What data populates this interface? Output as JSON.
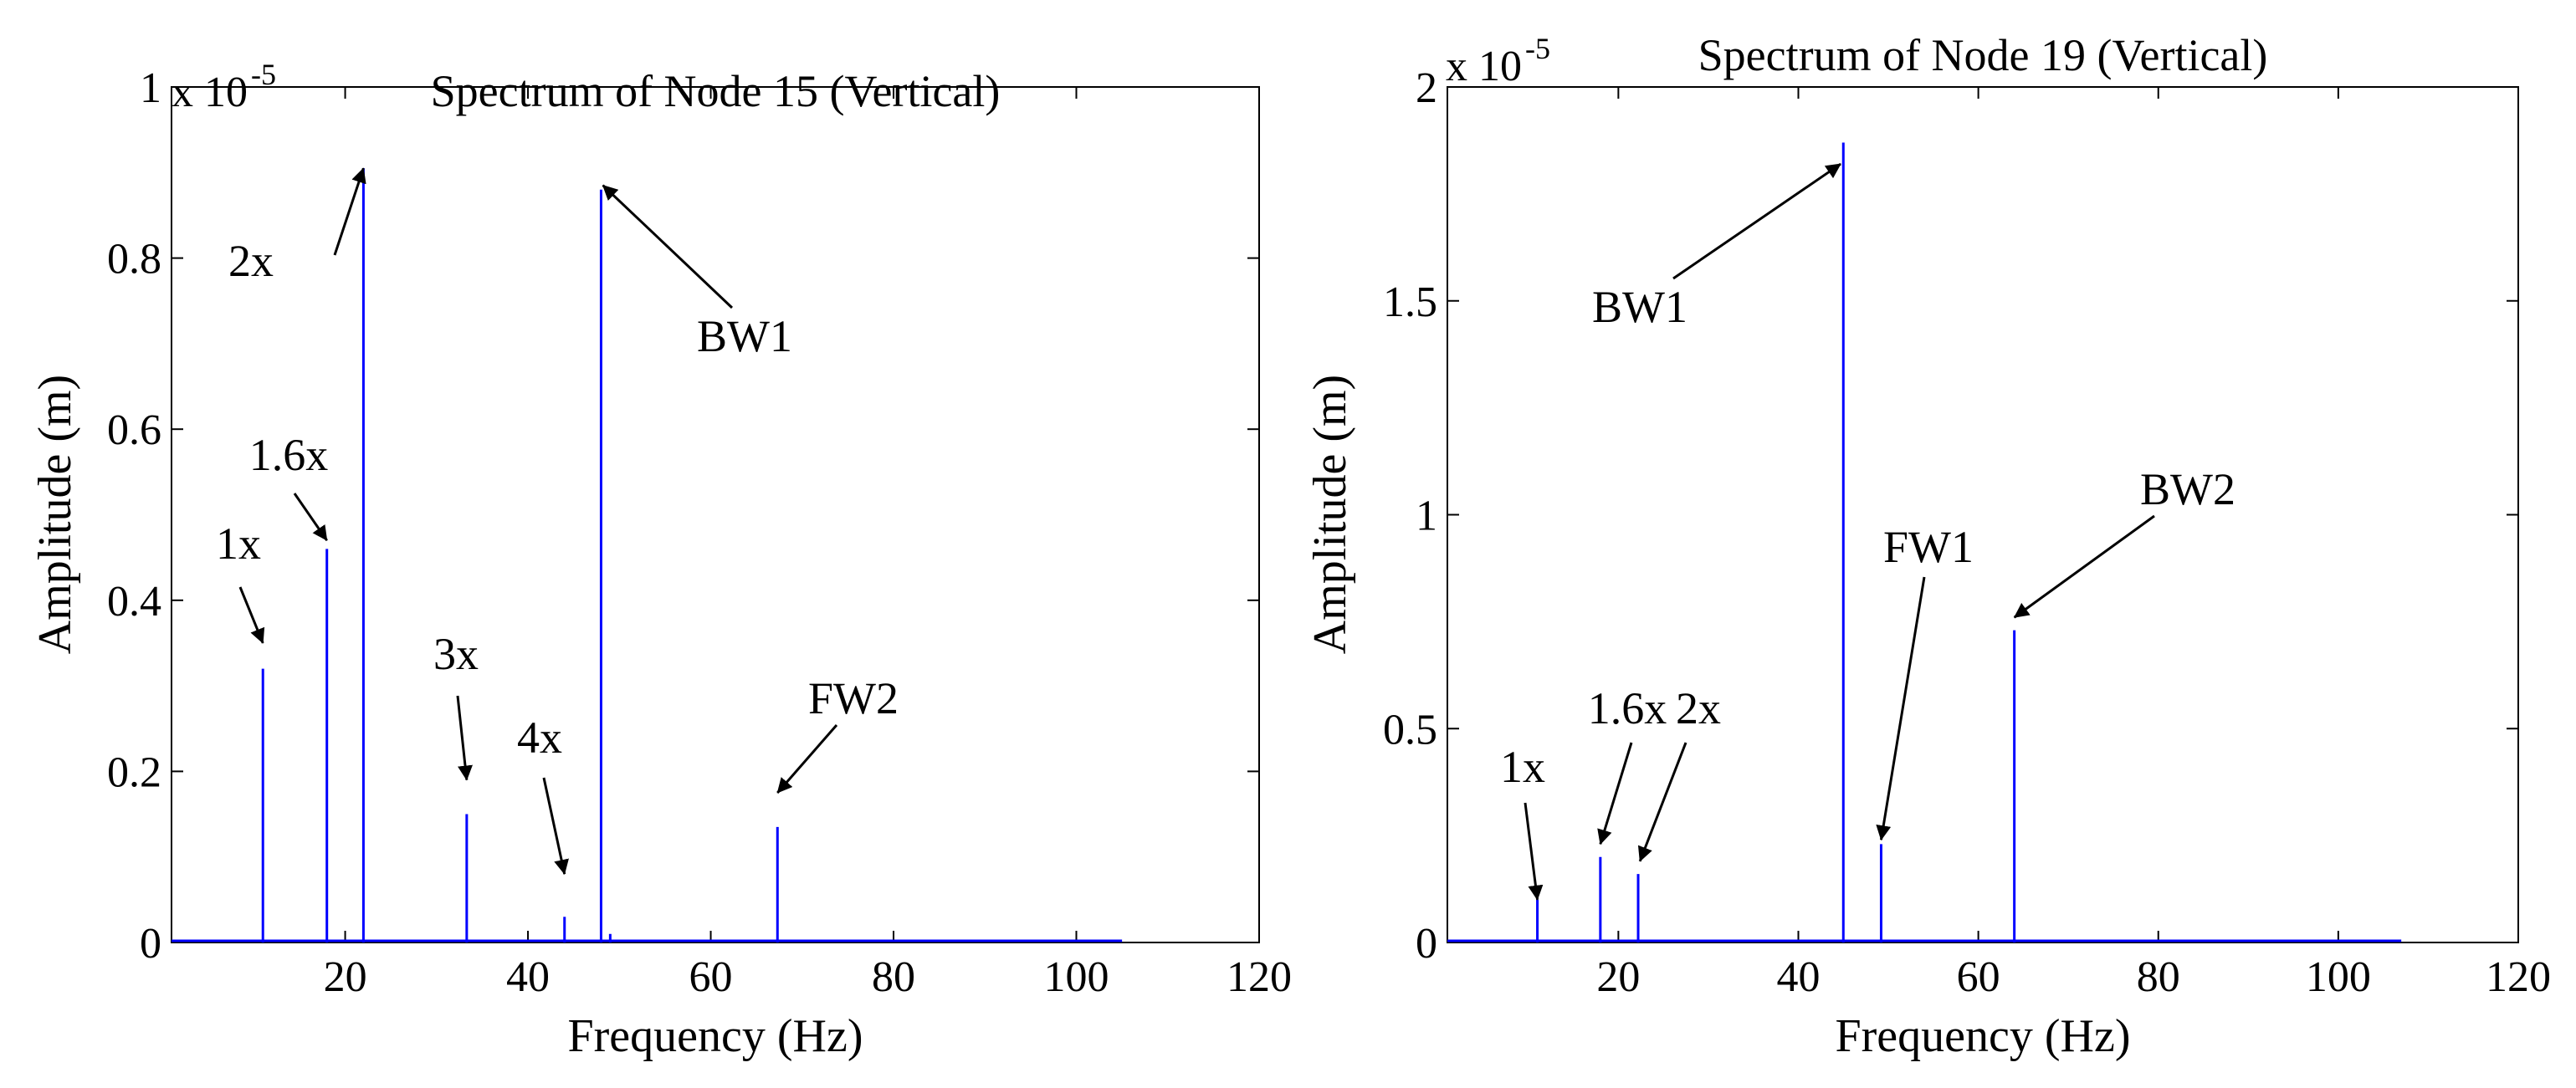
{
  "colors": {
    "series": "#0000ff",
    "axes": "#000000",
    "background": "#ffffff"
  },
  "chart_data": [
    {
      "type": "bar",
      "title": "Spectrum of Node 15 (Vertical)",
      "xlabel": "Frequency (Hz)",
      "ylabel": "Amplitude (m)",
      "y_multiplier": "x 10",
      "y_exponent": "-5",
      "xlim": [
        1,
        120
      ],
      "ylim": [
        0,
        1
      ],
      "xticks": [
        20,
        40,
        60,
        80,
        100,
        120
      ],
      "yticks": [
        0,
        0.2,
        0.4,
        0.6,
        0.8,
        1
      ],
      "ytick_labels": [
        "0",
        "0.2",
        "0.4",
        "0.6",
        "0.8",
        "1"
      ],
      "baseline_end": 105,
      "series": [
        {
          "name": "spectrum",
          "x": [
            11,
            18,
            22,
            33.3,
            44,
            48,
            49,
            67.3
          ],
          "values": [
            0.32,
            0.46,
            0.905,
            0.15,
            0.03,
            0.88,
            0.01,
            0.135
          ]
        }
      ],
      "annotations": [
        {
          "text": "2x",
          "target_x": 22,
          "target_y": 0.905
        },
        {
          "text": "1.6x",
          "target_x": 18,
          "target_y": 0.47
        },
        {
          "text": "1x",
          "target_x": 11,
          "target_y": 0.35
        },
        {
          "text": "3x",
          "target_x": 33.3,
          "target_y": 0.19
        },
        {
          "text": "4x",
          "target_x": 44,
          "target_y": 0.08
        },
        {
          "text": "BW1",
          "target_x": 48.2,
          "target_y": 0.885
        },
        {
          "text": "FW2",
          "target_x": 67.3,
          "target_y": 0.175
        }
      ]
    },
    {
      "type": "bar",
      "title": "Spectrum of Node 19 (Vertical)",
      "xlabel": "Frequency (Hz)",
      "ylabel": "Amplitude (m)",
      "y_multiplier": "x 10",
      "y_exponent": "-5",
      "xlim": [
        1,
        120
      ],
      "ylim": [
        0,
        2
      ],
      "xticks": [
        20,
        40,
        60,
        80,
        100,
        120
      ],
      "yticks": [
        0,
        0.5,
        1,
        1.5,
        2
      ],
      "ytick_labels": [
        "0",
        "0.5",
        "1",
        "1.5",
        "2"
      ],
      "baseline_end": 107,
      "series": [
        {
          "name": "spectrum",
          "x": [
            11,
            18,
            22.2,
            45,
            49.2,
            64
          ],
          "values": [
            0.1,
            0.2,
            0.16,
            1.87,
            0.23,
            0.73
          ]
        }
      ],
      "annotations": [
        {
          "text": "BW1",
          "target_x": 44.7,
          "target_y": 1.82
        },
        {
          "text": "FW1",
          "target_x": 49.2,
          "target_y": 0.24
        },
        {
          "text": "BW2",
          "target_x": 64,
          "target_y": 0.76
        },
        {
          "text": "1x",
          "target_x": 11,
          "target_y": 0.1
        },
        {
          "text": "1.6x",
          "target_x": 18,
          "target_y": 0.23
        },
        {
          "text": "2x",
          "target_x": 22.4,
          "target_y": 0.19
        }
      ]
    }
  ]
}
